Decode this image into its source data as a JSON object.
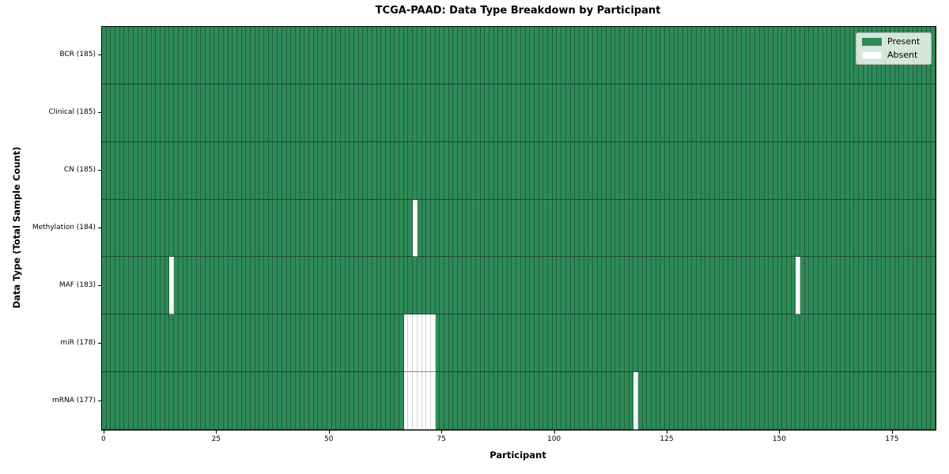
{
  "title": "TCGA-PAAD: Data Type Breakdown by Participant",
  "x_axis": {
    "label": "Participant",
    "ticks": [
      0,
      25,
      50,
      75,
      100,
      125,
      150,
      175
    ]
  },
  "y_axis": {
    "label": "Data Type (Total Sample Count)"
  },
  "legend": {
    "items": [
      {
        "label": "Present",
        "color": "#2e8b57"
      },
      {
        "label": "Absent",
        "color": "#ffffff"
      }
    ]
  },
  "chart_data": {
    "type": "heatmap",
    "title": "TCGA-PAAD: Data Type Breakdown by Participant",
    "xlabel": "Participant",
    "ylabel": "Data Type (Total Sample Count)",
    "n_participants": 185,
    "xlim": [
      0,
      185
    ],
    "x_ticks": [
      0,
      25,
      50,
      75,
      100,
      125,
      150,
      175
    ],
    "legend_position": "upper right",
    "legend_entries": [
      "Present",
      "Absent"
    ],
    "colors": {
      "present": "#2e8b57",
      "absent": "#ffffff"
    },
    "grid": true,
    "rows": [
      {
        "label": "BCR (185)",
        "data_type": "BCR",
        "total_samples": 185,
        "absent_participants": []
      },
      {
        "label": "Clinical (185)",
        "data_type": "Clinical",
        "total_samples": 185,
        "absent_participants": []
      },
      {
        "label": "CN (185)",
        "data_type": "CN",
        "total_samples": 185,
        "absent_participants": []
      },
      {
        "label": "Methylation (184)",
        "data_type": "Methylation",
        "total_samples": 184,
        "absent_participants": [
          69
        ]
      },
      {
        "label": "MAF (183)",
        "data_type": "MAF",
        "total_samples": 183,
        "absent_participants": [
          15,
          154
        ]
      },
      {
        "label": "miR (178)",
        "data_type": "miR",
        "total_samples": 178,
        "absent_participants": [
          67,
          68,
          69,
          70,
          71,
          72,
          73
        ]
      },
      {
        "label": "mRNA (177)",
        "data_type": "mRNA",
        "total_samples": 177,
        "absent_participants": [
          67,
          68,
          69,
          70,
          71,
          72,
          73,
          118
        ]
      }
    ]
  }
}
